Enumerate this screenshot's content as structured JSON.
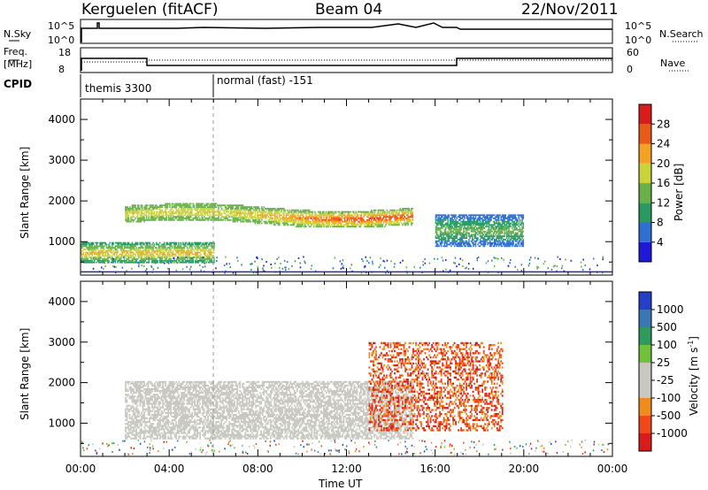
{
  "header": {
    "station": "Kerguelen (fitACF)",
    "beam": "Beam 04",
    "date": "22/Nov/2011"
  },
  "sky_panel": {
    "left_label": "N.Sky",
    "left_ticks": [
      "10^5",
      "10^0"
    ],
    "right_label": "N.Search",
    "right_ticks": [
      "10^5",
      "10^0"
    ]
  },
  "freq_panel": {
    "left_label_1": "Freq.",
    "left_label_2": "[MHz]",
    "left_ticks": [
      "18",
      "8"
    ],
    "right_label": "Nave",
    "right_ticks": [
      "60",
      "0"
    ]
  },
  "cpid_panel": {
    "label": "CPID",
    "segments": [
      "themis 3300",
      "normal (fast) -151"
    ]
  },
  "chart_data": [
    {
      "type": "heatmap",
      "title": "Power",
      "ylabel": "Slant Range [km]",
      "ylim": [
        180,
        4500
      ],
      "yticks": [
        "1000",
        "2000",
        "3000",
        "4000"
      ],
      "colorbar_label": "Power [dB]",
      "colorbar_ticks": [
        "28",
        "24",
        "20",
        "16",
        "12",
        "8",
        "4"
      ],
      "colors": [
        "#1e18d8",
        "#2e6fd0",
        "#2b9a60",
        "#6ab04a",
        "#c8d43a",
        "#f4a224",
        "#e85a17",
        "#d81b1b"
      ],
      "features": [
        {
          "name": "main echo band",
          "time_range": [
            "02:00",
            "15:00"
          ],
          "range_km": [
            1500,
            1800
          ],
          "power_db": [
            12,
            30
          ]
        },
        {
          "name": "near range echoes",
          "time_range": [
            "00:00",
            "06:00"
          ],
          "range_km": [
            500,
            900
          ],
          "power_db": [
            8,
            24
          ]
        },
        {
          "name": "late echoes",
          "time_range": [
            "16:00",
            "20:00"
          ],
          "range_km": [
            900,
            1600
          ],
          "power_db": [
            4,
            16
          ]
        }
      ]
    },
    {
      "type": "heatmap",
      "title": "Velocity",
      "ylabel": "Slant Range [km]",
      "ylim": [
        180,
        4500
      ],
      "yticks": [
        "1000",
        "2000",
        "3000",
        "4000"
      ],
      "colorbar_label": "Velocity [m s",
      "colorbar_label_sup": "-1",
      "colorbar_ticks": [
        "1000",
        "500",
        "100",
        "25",
        "-25",
        "-100",
        "-500",
        "-1000"
      ],
      "colors": [
        "#2440c8",
        "#3a78b4",
        "#2e9a5c",
        "#6fc23a",
        "#c8c8c0",
        "#c8c8c0",
        "#f08c1c",
        "#f04818",
        "#d81b1b"
      ],
      "features": [
        {
          "name": "ground scatter band",
          "time_range": [
            "02:00",
            "15:00"
          ],
          "range_km": [
            1400,
            1800
          ],
          "velocity_ms": [
            -25,
            25
          ]
        },
        {
          "name": "negative velocity echoes",
          "time_range": [
            "13:00",
            "19:00"
          ],
          "range_km": [
            800,
            3000
          ],
          "velocity_ms": [
            -1000,
            -100
          ]
        }
      ]
    }
  ],
  "time_axis": {
    "ticks": [
      "00:00",
      "04:00",
      "08:00",
      "12:00",
      "16:00",
      "20:00",
      "00:00"
    ],
    "label": "Time UT"
  }
}
